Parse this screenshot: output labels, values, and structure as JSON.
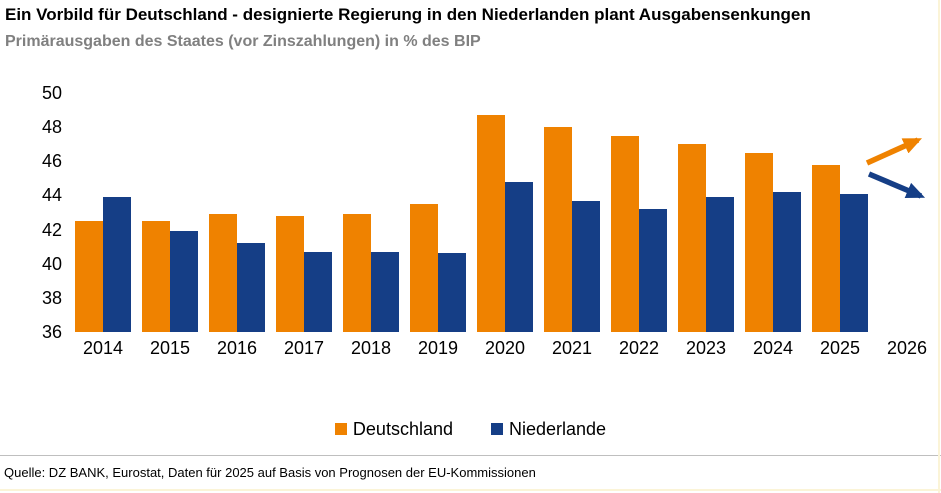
{
  "header": {
    "title": "Ein Vorbild für Deutschland - designierte Regierung in den Niederlanden plant Ausgabensenkungen",
    "subtitle": "Primärausgaben des Staates (vor Zinszahlungen) in % des BIP"
  },
  "chart_data": {
    "type": "bar",
    "title": "Ein Vorbild für Deutschland - designierte Regierung in den Niederlanden plant Ausgabensenkungen",
    "subtitle": "Primärausgaben des Staates (vor Zinszahlungen) in % des BIP",
    "categories": [
      "2014",
      "2015",
      "2016",
      "2017",
      "2018",
      "2019",
      "2020",
      "2021",
      "2022",
      "2023",
      "2024",
      "2025",
      "2026"
    ],
    "series": [
      {
        "name": "Deutschland",
        "color": "#EF8200",
        "values": [
          42.5,
          42.5,
          42.9,
          42.8,
          42.9,
          43.5,
          48.7,
          48.0,
          47.5,
          47.0,
          46.5,
          45.8,
          null
        ]
      },
      {
        "name": "Niederlande",
        "color": "#153E86",
        "values": [
          43.9,
          41.9,
          41.2,
          40.7,
          40.7,
          40.6,
          44.8,
          43.7,
          43.2,
          43.9,
          44.2,
          44.1,
          null
        ]
      }
    ],
    "xlabel": "",
    "ylabel": "",
    "ylim": [
      36,
      50
    ],
    "ytick_step": 2,
    "grid": false,
    "legend_position": "bottom",
    "annotations": [
      {
        "type": "arrow",
        "series": "Deutschland",
        "direction": "up",
        "year": "2026"
      },
      {
        "type": "arrow",
        "series": "Niederlande",
        "direction": "down",
        "year": "2026"
      }
    ]
  },
  "footer": {
    "source": "Quelle: DZ BANK, Eurostat, Daten für 2025 auf Basis von Prognosen der EU-Kommissionen"
  },
  "colors": {
    "deutschland": "#EF8200",
    "niederlande": "#153E86",
    "subtitle_gray": "#808080",
    "divider_gray": "#BFBFBF",
    "panel_edge_cream": "#FBF4D7",
    "text_black": "#000000"
  }
}
